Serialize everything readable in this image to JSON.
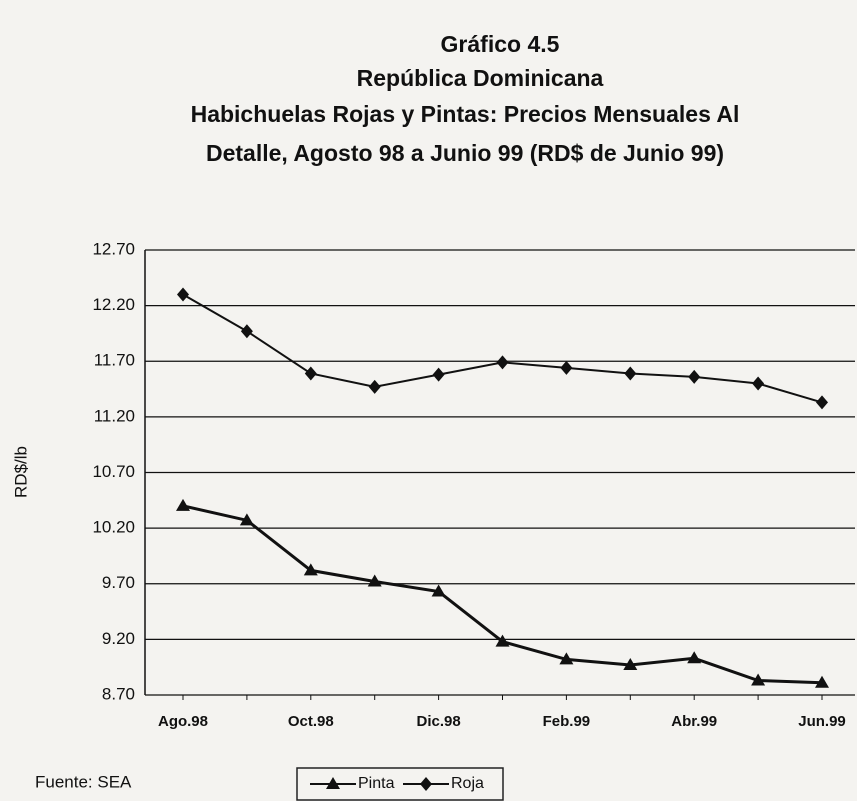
{
  "chart_data": {
    "type": "line",
    "title_lines": [
      "Gráfico 4.5",
      "República Dominicana",
      "Habichuelas Rojas y Pintas: Precios Mensuales Al",
      "Detalle, Agosto 98 a Junio 99 (RD$ de Junio 99)"
    ],
    "y_label": "RD$/lb",
    "source": "Fuente: SEA",
    "categories": [
      "Ago.98",
      null,
      "Oct.98",
      null,
      "Dic.98",
      null,
      "Feb.99",
      null,
      "Abr.99",
      null,
      "Jun.99"
    ],
    "series": [
      {
        "name": "Pinta",
        "color": "#111111",
        "marker": "triangle",
        "values": [
          10.4,
          10.27,
          9.82,
          9.72,
          9.63,
          9.18,
          9.02,
          8.97,
          9.03,
          8.83,
          8.81
        ]
      },
      {
        "name": "Roja",
        "color": "#111111",
        "marker": "diamond",
        "values": [
          12.3,
          11.97,
          11.59,
          11.47,
          11.58,
          11.69,
          11.64,
          11.59,
          11.56,
          11.5,
          11.33
        ]
      }
    ],
    "ylim": [
      8.7,
      12.7
    ],
    "yticks": [
      {
        "value": 12.7,
        "label": "12.70"
      },
      {
        "value": 12.2,
        "label": "12.20"
      },
      {
        "value": 11.7,
        "label": "11.70"
      },
      {
        "value": 11.2,
        "label": "11.20"
      },
      {
        "value": 10.7,
        "label": "10.70"
      },
      {
        "value": 10.2,
        "label": "10.20"
      },
      {
        "value": 9.7,
        "label": "9.70"
      },
      {
        "value": 9.2,
        "label": "9.20"
      },
      {
        "value": 8.7,
        "label": "8.70"
      }
    ],
    "grid": true,
    "legend": "bottom"
  }
}
